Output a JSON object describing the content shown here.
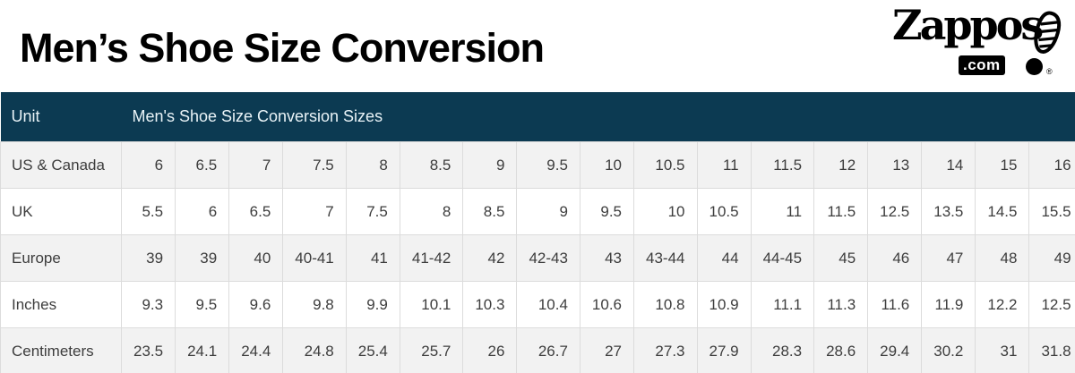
{
  "logo": {
    "brand": "Zappos",
    "domain": ".com",
    "registered": "®",
    "icon": "shoe-print-exclamation-icon"
  },
  "colors": {
    "header_bg": "#0c3a52",
    "header_text": "#e9f3f7",
    "row_alt_bg": "#f2f2f2",
    "row_bg": "#ffffff",
    "border": "#dcdcdc",
    "cell_text": "#3d3d3d",
    "title_text": "#000000",
    "logo_color": "#000000"
  },
  "chart_data": {
    "type": "table",
    "title": "Men’s Shoe Size Conversion",
    "header": {
      "unit": "Unit",
      "group": "Men's Shoe Size Conversion Sizes"
    },
    "rows": [
      {
        "label": "US & Canada",
        "values": [
          "6",
          "6.5",
          "7",
          "7.5",
          "8",
          "8.5",
          "9",
          "9.5",
          "10",
          "10.5",
          "11",
          "11.5",
          "12",
          "13",
          "14",
          "15",
          "16"
        ]
      },
      {
        "label": "UK",
        "values": [
          "5.5",
          "6",
          "6.5",
          "7",
          "7.5",
          "8",
          "8.5",
          "9",
          "9.5",
          "10",
          "10.5",
          "11",
          "11.5",
          "12.5",
          "13.5",
          "14.5",
          "15.5"
        ]
      },
      {
        "label": "Europe",
        "values": [
          "39",
          "39",
          "40",
          "40-41",
          "41",
          "41-42",
          "42",
          "42-43",
          "43",
          "43-44",
          "44",
          "44-45",
          "45",
          "46",
          "47",
          "48",
          "49"
        ]
      },
      {
        "label": "Inches",
        "values": [
          "9.3",
          "9.5",
          "9.6",
          "9.8",
          "9.9",
          "10.1",
          "10.3",
          "10.4",
          "10.6",
          "10.8",
          "10.9",
          "11.1",
          "11.3",
          "11.6",
          "11.9",
          "12.2",
          "12.5"
        ]
      },
      {
        "label": "Centimeters",
        "values": [
          "23.5",
          "24.1",
          "24.4",
          "24.8",
          "25.4",
          "25.7",
          "26",
          "26.7",
          "27",
          "27.3",
          "27.9",
          "28.3",
          "28.6",
          "29.4",
          "30.2",
          "31",
          "31.8"
        ]
      }
    ],
    "layout": {
      "columns": 17,
      "row_striping": "first-row-shaded"
    }
  }
}
